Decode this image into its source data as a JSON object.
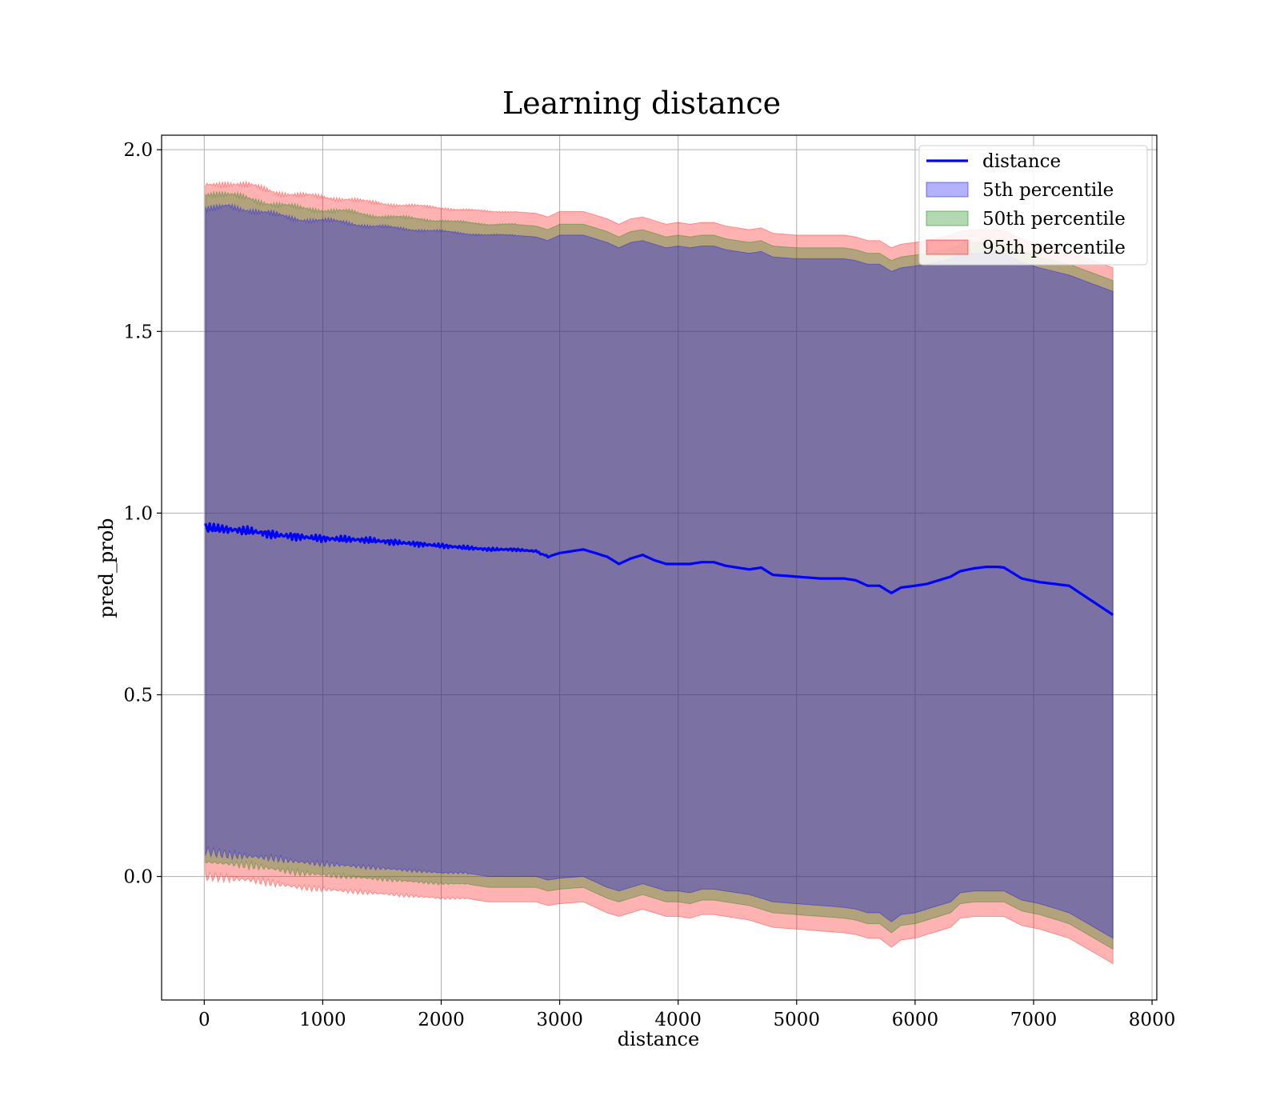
{
  "chart_data": {
    "type": "line",
    "title": "Learning distance",
    "xlabel": "distance",
    "ylabel": "pred_prob",
    "xlim": [
      -360,
      8040
    ],
    "ylim": [
      -0.34,
      2.04
    ],
    "xticks": [
      0,
      1000,
      2000,
      3000,
      4000,
      5000,
      6000,
      7000,
      8000
    ],
    "xtick_labels": [
      "0",
      "1000",
      "2000",
      "3000",
      "4000",
      "5000",
      "6000",
      "7000",
      "8000"
    ],
    "yticks": [
      0.0,
      0.5,
      1.0,
      1.5,
      2.0
    ],
    "ytick_labels": [
      "0.0",
      "0.5",
      "1.0",
      "1.5",
      "2.0"
    ],
    "grid": true,
    "legend_position": "top-right",
    "legend": [
      "distance",
      "5th percentile",
      "50th percentile",
      "95th percentile"
    ],
    "colors": {
      "line": "#0000ff",
      "p5": "#0000ff",
      "p50": "#008000",
      "p95": "#ff0000"
    },
    "line_width": 3.2,
    "noise_until": 2900,
    "x": [
      10,
      200,
      400,
      600,
      800,
      1000,
      1200,
      1400,
      1600,
      1800,
      2000,
      2200,
      2400,
      2600,
      2800,
      2900,
      3000,
      3200,
      3400,
      3500,
      3600,
      3700,
      3800,
      3900,
      4000,
      4100,
      4200,
      4300,
      4400,
      4500,
      4600,
      4700,
      4800,
      5000,
      5200,
      5400,
      5500,
      5600,
      5700,
      5800,
      5880,
      6000,
      6100,
      6250,
      6300,
      6380,
      6500,
      6600,
      6700,
      6750,
      6900,
      7050,
      7300,
      7670
    ],
    "series": [
      {
        "name": "distance",
        "values": [
          0.96,
          0.955,
          0.95,
          0.94,
          0.935,
          0.93,
          0.928,
          0.925,
          0.92,
          0.915,
          0.91,
          0.905,
          0.9,
          0.9,
          0.895,
          0.88,
          0.89,
          0.9,
          0.88,
          0.86,
          0.875,
          0.885,
          0.87,
          0.86,
          0.86,
          0.86,
          0.865,
          0.865,
          0.855,
          0.85,
          0.845,
          0.85,
          0.83,
          0.825,
          0.82,
          0.82,
          0.815,
          0.8,
          0.8,
          0.78,
          0.795,
          0.8,
          0.805,
          0.82,
          0.825,
          0.84,
          0.848,
          0.852,
          0.852,
          0.85,
          0.82,
          0.81,
          0.8,
          0.72
        ]
      },
      {
        "name": "5th percentile",
        "values": [
          [
            0.07,
            1.84
          ],
          [
            0.06,
            1.845
          ],
          [
            0.055,
            1.835
          ],
          [
            0.05,
            1.82
          ],
          [
            0.04,
            1.81
          ],
          [
            0.035,
            1.805
          ],
          [
            0.03,
            1.8
          ],
          [
            0.025,
            1.79
          ],
          [
            0.02,
            1.785
          ],
          [
            0.015,
            1.78
          ],
          [
            0.01,
            1.775
          ],
          [
            0.01,
            1.77
          ],
          [
            0.0,
            1.765
          ],
          [
            0.0,
            1.765
          ],
          [
            0.0,
            1.76
          ],
          [
            -0.01,
            1.75
          ],
          [
            -0.005,
            1.765
          ],
          [
            0.0,
            1.765
          ],
          [
            -0.03,
            1.745
          ],
          [
            -0.04,
            1.73
          ],
          [
            -0.03,
            1.745
          ],
          [
            -0.02,
            1.75
          ],
          [
            -0.03,
            1.74
          ],
          [
            -0.04,
            1.73
          ],
          [
            -0.04,
            1.735
          ],
          [
            -0.045,
            1.73
          ],
          [
            -0.035,
            1.735
          ],
          [
            -0.035,
            1.735
          ],
          [
            -0.04,
            1.725
          ],
          [
            -0.045,
            1.72
          ],
          [
            -0.05,
            1.715
          ],
          [
            -0.06,
            1.72
          ],
          [
            -0.07,
            1.705
          ],
          [
            -0.075,
            1.7
          ],
          [
            -0.08,
            1.7
          ],
          [
            -0.085,
            1.7
          ],
          [
            -0.09,
            1.695
          ],
          [
            -0.1,
            1.685
          ],
          [
            -0.1,
            1.685
          ],
          [
            -0.125,
            1.665
          ],
          [
            -0.105,
            1.675
          ],
          [
            -0.1,
            1.68
          ],
          [
            -0.09,
            1.685
          ],
          [
            -0.075,
            1.695
          ],
          [
            -0.07,
            1.7
          ],
          [
            -0.045,
            1.71
          ],
          [
            -0.04,
            1.715
          ],
          [
            -0.04,
            1.715
          ],
          [
            -0.04,
            1.715
          ],
          [
            -0.04,
            1.715
          ],
          [
            -0.065,
            1.69
          ],
          [
            -0.075,
            1.675
          ],
          [
            -0.1,
            1.655
          ],
          [
            -0.17,
            1.61
          ]
        ]
      },
      {
        "name": "50th percentile",
        "values": [
          [
            0.04,
            1.87
          ],
          [
            0.035,
            1.875
          ],
          [
            0.03,
            1.865
          ],
          [
            0.02,
            1.85
          ],
          [
            0.01,
            1.84
          ],
          [
            0.005,
            1.835
          ],
          [
            0.0,
            1.83
          ],
          [
            -0.005,
            1.82
          ],
          [
            -0.01,
            1.815
          ],
          [
            -0.015,
            1.81
          ],
          [
            -0.02,
            1.805
          ],
          [
            -0.02,
            1.8
          ],
          [
            -0.03,
            1.795
          ],
          [
            -0.03,
            1.795
          ],
          [
            -0.03,
            1.79
          ],
          [
            -0.04,
            1.78
          ],
          [
            -0.035,
            1.795
          ],
          [
            -0.03,
            1.795
          ],
          [
            -0.06,
            1.775
          ],
          [
            -0.07,
            1.76
          ],
          [
            -0.06,
            1.775
          ],
          [
            -0.05,
            1.78
          ],
          [
            -0.06,
            1.77
          ],
          [
            -0.07,
            1.76
          ],
          [
            -0.07,
            1.765
          ],
          [
            -0.075,
            1.76
          ],
          [
            -0.065,
            1.765
          ],
          [
            -0.065,
            1.765
          ],
          [
            -0.07,
            1.755
          ],
          [
            -0.075,
            1.75
          ],
          [
            -0.08,
            1.745
          ],
          [
            -0.09,
            1.75
          ],
          [
            -0.1,
            1.735
          ],
          [
            -0.105,
            1.73
          ],
          [
            -0.11,
            1.73
          ],
          [
            -0.115,
            1.73
          ],
          [
            -0.12,
            1.725
          ],
          [
            -0.13,
            1.715
          ],
          [
            -0.13,
            1.715
          ],
          [
            -0.155,
            1.695
          ],
          [
            -0.135,
            1.705
          ],
          [
            -0.13,
            1.71
          ],
          [
            -0.12,
            1.715
          ],
          [
            -0.105,
            1.725
          ],
          [
            -0.1,
            1.73
          ],
          [
            -0.075,
            1.74
          ],
          [
            -0.07,
            1.745
          ],
          [
            -0.07,
            1.745
          ],
          [
            -0.07,
            1.745
          ],
          [
            -0.07,
            1.745
          ],
          [
            -0.095,
            1.72
          ],
          [
            -0.105,
            1.705
          ],
          [
            -0.13,
            1.685
          ],
          [
            -0.2,
            1.64
          ]
        ]
      },
      {
        "name": "95th percentile",
        "values": [
          [
            0.0,
            1.905
          ],
          [
            -0.005,
            1.91
          ],
          [
            -0.01,
            1.9
          ],
          [
            -0.02,
            1.885
          ],
          [
            -0.03,
            1.875
          ],
          [
            -0.035,
            1.87
          ],
          [
            -0.04,
            1.865
          ],
          [
            -0.045,
            1.855
          ],
          [
            -0.05,
            1.85
          ],
          [
            -0.055,
            1.845
          ],
          [
            -0.06,
            1.84
          ],
          [
            -0.06,
            1.835
          ],
          [
            -0.07,
            1.83
          ],
          [
            -0.07,
            1.83
          ],
          [
            -0.07,
            1.825
          ],
          [
            -0.08,
            1.815
          ],
          [
            -0.075,
            1.83
          ],
          [
            -0.07,
            1.83
          ],
          [
            -0.1,
            1.81
          ],
          [
            -0.11,
            1.795
          ],
          [
            -0.1,
            1.81
          ],
          [
            -0.09,
            1.815
          ],
          [
            -0.1,
            1.805
          ],
          [
            -0.11,
            1.795
          ],
          [
            -0.11,
            1.8
          ],
          [
            -0.115,
            1.795
          ],
          [
            -0.105,
            1.8
          ],
          [
            -0.105,
            1.8
          ],
          [
            -0.11,
            1.79
          ],
          [
            -0.115,
            1.785
          ],
          [
            -0.12,
            1.78
          ],
          [
            -0.13,
            1.785
          ],
          [
            -0.14,
            1.77
          ],
          [
            -0.145,
            1.765
          ],
          [
            -0.15,
            1.765
          ],
          [
            -0.155,
            1.765
          ],
          [
            -0.16,
            1.76
          ],
          [
            -0.17,
            1.75
          ],
          [
            -0.17,
            1.75
          ],
          [
            -0.195,
            1.73
          ],
          [
            -0.175,
            1.74
          ],
          [
            -0.17,
            1.745
          ],
          [
            -0.16,
            1.75
          ],
          [
            -0.145,
            1.76
          ],
          [
            -0.14,
            1.765
          ],
          [
            -0.115,
            1.775
          ],
          [
            -0.11,
            1.78
          ],
          [
            -0.11,
            1.78
          ],
          [
            -0.11,
            1.78
          ],
          [
            -0.11,
            1.78
          ],
          [
            -0.135,
            1.755
          ],
          [
            -0.145,
            1.74
          ],
          [
            -0.17,
            1.72
          ],
          [
            -0.24,
            1.675
          ]
        ]
      }
    ]
  }
}
